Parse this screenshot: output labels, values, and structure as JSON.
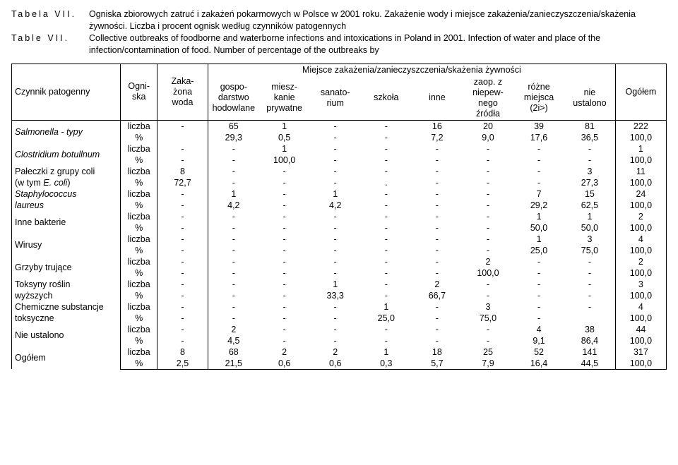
{
  "caption": {
    "label_pl": "Tabela VII.",
    "text_pl": "Ogniska zbiorowych zatruć i zakażeń pokarmowych w Polsce w 2001 roku. Zakażenie wody i miejsce zakażenia/zanieczyszczenia/skażenia żywności. Liczba i procent ognisk według czynników patogennych",
    "label_en": "Table VII.",
    "text_en": "Collective outbreaks of foodborne and waterborne infections and intoxications in Poland in 2001. Infection of water and place of the infection/contamination of food. Number of percentage of the outbreaks by"
  },
  "headers": {
    "czynnik": "Czynnik patogenny",
    "ogniska": "Ogni-\nska",
    "zakazona_woda": "Zaka-\nżona\nwoda",
    "spanning": "Miejsce zakażenia/zanieczyszczenia/skażenia żywności",
    "gospodarstwo": "gospo-\ndarstwo\nhodowlane",
    "mieszkanie": "miesz-\nkanie\nprywatne",
    "sanatorium": "sanato-\nrium",
    "szkola": "szkoła",
    "inne": "inne",
    "zaop": "zaop. z\nniepew-\nnego\nźródła",
    "rozne": "różne\nmiejsca\n(2i>)",
    "nie_ust": "nie\nustalono",
    "ogolem": "Ogółem"
  },
  "units": {
    "liczba": "liczba",
    "procent": "%"
  },
  "rows": [
    {
      "label": "Salmonella - typy",
      "italic": true,
      "liczba": [
        "-",
        "65",
        "1",
        "-",
        "-",
        "16",
        "20",
        "39",
        "81",
        "222"
      ],
      "procent": [
        "",
        "29,3",
        "0,5",
        "-",
        "-",
        "7,2",
        "9,0",
        "17,6",
        "36,5",
        "100,0"
      ]
    },
    {
      "label": "Clostridium botullnum",
      "italic": true,
      "liczba": [
        "-",
        "-",
        "1",
        "-",
        "-",
        "-",
        "-",
        "-",
        "-",
        "1"
      ],
      "procent": [
        "-",
        "-",
        "100,0",
        "-",
        "-",
        "-",
        "-",
        "-",
        "-",
        "100,0"
      ]
    },
    {
      "label": "Pałeczki z grupy coli",
      "label2": "(w tym E. coli)",
      "italic_partial": true,
      "liczba": [
        "8",
        "-",
        "-",
        "-",
        "-",
        "-",
        "-",
        "-",
        "3",
        "11"
      ],
      "procent": [
        "72,7",
        "-",
        "-",
        "-",
        ".",
        "-",
        "-",
        "-",
        "27,3",
        "100,0"
      ]
    },
    {
      "label": "Staphylococcus",
      "label2": "laureus",
      "italic": true,
      "liczba": [
        "-",
        "1",
        "-",
        "1",
        "-",
        "-",
        "-",
        "7",
        "15",
        "24"
      ],
      "procent": [
        "-",
        "4,2",
        "-",
        "4,2",
        "-",
        "-",
        "-",
        "29,2",
        "62,5",
        "100,0"
      ]
    },
    {
      "label": "Inne bakterie",
      "liczba": [
        "-",
        "-",
        "-",
        "-",
        "-",
        "-",
        "-",
        "1",
        "1",
        "2"
      ],
      "procent": [
        "-",
        "-",
        "-",
        "-",
        "-",
        "-",
        "-",
        "50,0",
        "50,0",
        "100,0"
      ]
    },
    {
      "label": "Wirusy",
      "liczba": [
        "-",
        "-",
        "-",
        "-",
        "-",
        "-",
        "-",
        "1",
        "3",
        "4"
      ],
      "procent": [
        "-",
        "-",
        "-",
        "-",
        "-",
        "-",
        "-",
        "25,0",
        "75,0",
        "100,0"
      ]
    },
    {
      "label": "Grzyby trujące",
      "liczba": [
        "-",
        "-",
        "-",
        "-",
        "-",
        "-",
        "2",
        "-",
        "-",
        "2"
      ],
      "procent": [
        "-",
        "-",
        "-",
        "-",
        "-",
        "-",
        "100,0",
        "-",
        "-",
        "100,0"
      ]
    },
    {
      "label": "Toksyny roślin",
      "label2": "wyższych",
      "liczba": [
        "-",
        "-",
        "-",
        "1",
        "-",
        "2",
        "-",
        "-",
        "-",
        "3"
      ],
      "procent": [
        "-",
        "-",
        "-",
        "33,3",
        "-",
        "66,7",
        "-",
        "-",
        "-",
        "100,0"
      ]
    },
    {
      "label": "Chemiczne substancje",
      "label2": "toksyczne",
      "liczba": [
        "-",
        "-",
        "-",
        "-",
        "1",
        "-",
        "3",
        "-",
        "-",
        "4"
      ],
      "procent": [
        "-",
        "-",
        "-",
        "-",
        "25,0",
        "-",
        "75,0",
        "-",
        "",
        "100,0"
      ]
    },
    {
      "label": "Nie ustalono",
      "liczba": [
        "-",
        "2",
        "-",
        "-",
        "-",
        "-",
        "-",
        "4",
        "38",
        "44"
      ],
      "procent": [
        "-",
        "4,5",
        "-",
        "-",
        "-",
        "-",
        "-",
        "9,1",
        "86,4",
        "100,0"
      ]
    },
    {
      "label": "Ogółem",
      "liczba": [
        "8",
        "68",
        "2",
        "2",
        "1",
        "18",
        "25",
        "52",
        "141",
        "317"
      ],
      "procent": [
        "2,5",
        "21,5",
        "0,6",
        "0,6",
        "0,3",
        "5,7",
        "7,9",
        "16,4",
        "44,5",
        "100,0"
      ]
    }
  ]
}
